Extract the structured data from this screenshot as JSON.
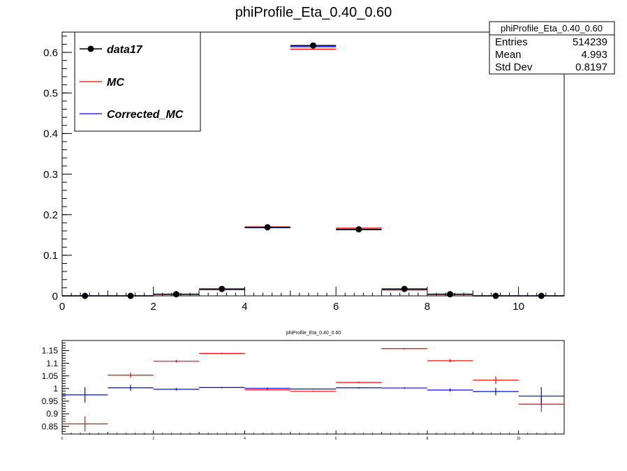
{
  "chart_data": [
    {
      "type": "scatter",
      "title": "phiProfile_Eta_0.40_0.60",
      "xlim": [
        0,
        11
      ],
      "ylim": [
        0,
        0.65
      ],
      "xticks": [
        0,
        2,
        4,
        6,
        8,
        10
      ],
      "yticks": [
        0,
        0.1,
        0.2,
        0.3,
        0.4,
        0.5,
        0.6
      ],
      "x": [
        0.5,
        1.5,
        2.5,
        3.5,
        4.5,
        5.5,
        6.5,
        7.5,
        8.5,
        9.5,
        10.5
      ],
      "series": [
        {
          "name": "data17",
          "color": "#000000",
          "style": "markers",
          "values": [
            0.0,
            0.0,
            0.004,
            0.017,
            0.169,
            0.617,
            0.164,
            0.017,
            0.004,
            0.0,
            0.0
          ]
        },
        {
          "name": "MC",
          "color": "#ff0000",
          "style": "histogram",
          "values": [
            0.0,
            0.0,
            0.0035,
            0.015,
            0.17,
            0.608,
            0.167,
            0.0145,
            0.0035,
            0.0,
            0.0
          ]
        },
        {
          "name": "Corrected_MC",
          "color": "#0000ff",
          "style": "histogram",
          "values": [
            0.0,
            0.0,
            0.004,
            0.017,
            0.168,
            0.614,
            0.163,
            0.017,
            0.004,
            0.0,
            0.0
          ]
        }
      ],
      "legend": {
        "placement": "top-left"
      },
      "stats": {
        "title": "phiProfile_Eta_0.40_0.60",
        "rows": [
          {
            "label": "Entries",
            "value": "514239"
          },
          {
            "label": "Mean",
            "value": "4.993"
          },
          {
            "label": "Std Dev",
            "value": "0.8197"
          }
        ]
      }
    },
    {
      "type": "scatter",
      "title": "phiProfile_Eta_0.40_0.60",
      "xlim": [
        0,
        11
      ],
      "ylim": [
        0.82,
        1.19
      ],
      "xticks": [
        0,
        2,
        4,
        6,
        8,
        10
      ],
      "yticks": [
        0.85,
        0.9,
        0.95,
        1,
        1.05,
        1.1,
        1.15
      ],
      "ytick_labels": [
        "0.85",
        "0.9",
        "0.95",
        "1",
        "1.05",
        "1.1",
        "1.15"
      ],
      "x": [
        0.5,
        1.5,
        2.5,
        3.5,
        4.5,
        5.5,
        6.5,
        7.5,
        8.5,
        9.5,
        10.5
      ],
      "series": [
        {
          "color": "#ff0000",
          "values": [
            0.86,
            1.053,
            1.108,
            1.139,
            0.995,
            0.989,
            1.024,
            1.158,
            1.11,
            1.033,
            0.938
          ],
          "errors": [
            0.03,
            0.01,
            0.005,
            0.003,
            0.003,
            0.002,
            0.003,
            0.003,
            0.006,
            0.015,
            0.03
          ]
        },
        {
          "color": "#0000ff",
          "values": [
            0.975,
            1.003,
            0.997,
            1.004,
            1.001,
            0.998,
            1.003,
            1.002,
            0.994,
            0.988,
            0.97
          ],
          "errors": [
            0.03,
            0.012,
            0.005,
            0.003,
            0.003,
            0.002,
            0.003,
            0.003,
            0.006,
            0.015,
            0.035
          ]
        }
      ]
    }
  ]
}
